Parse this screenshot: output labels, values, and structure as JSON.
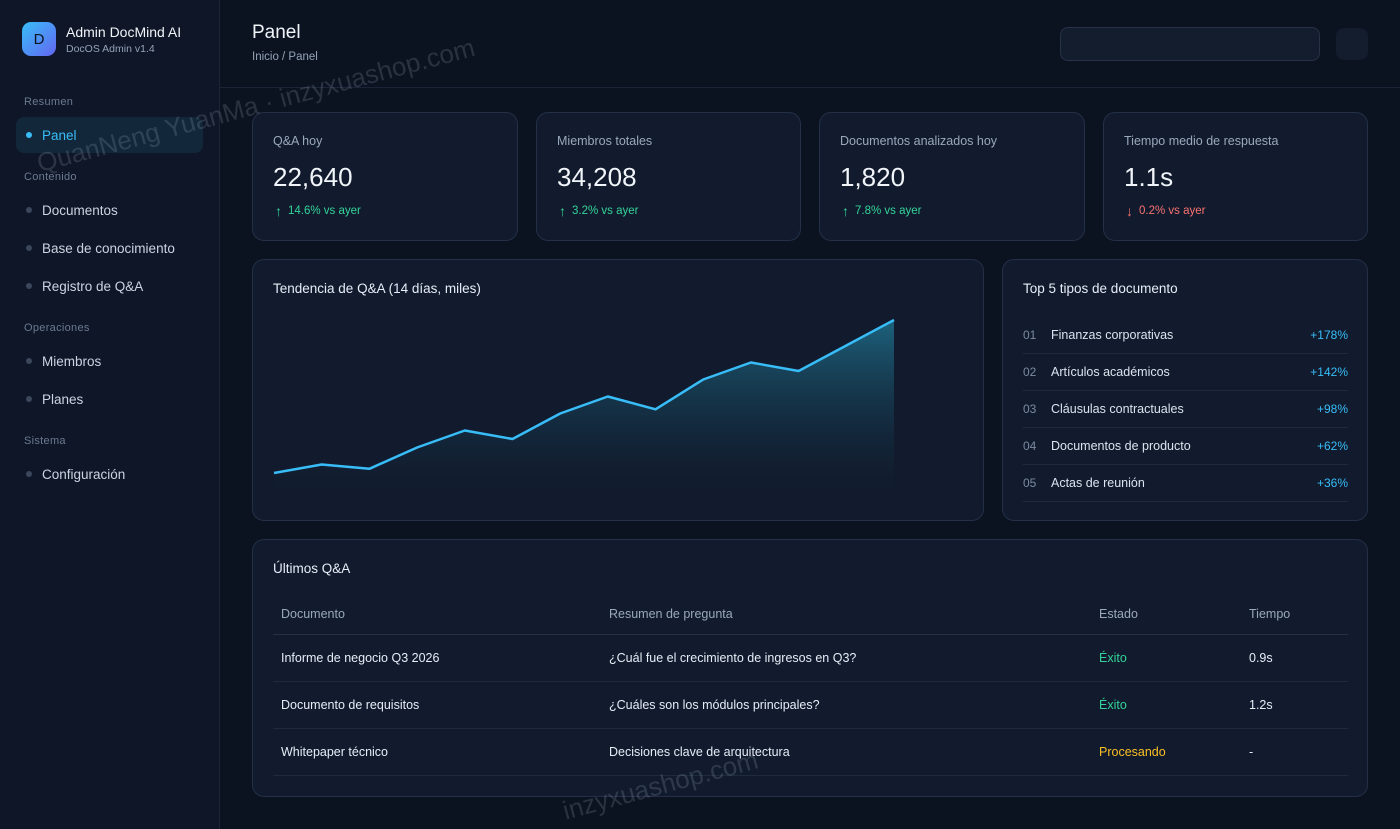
{
  "brand": {
    "logo_letter": "D",
    "name": "Admin DocMind AI",
    "version": "DocOS Admin v1.4"
  },
  "sidebar": {
    "sections": [
      {
        "label": "Resumen",
        "items": [
          {
            "label": "Panel",
            "active": true
          }
        ]
      },
      {
        "label": "Contenido",
        "items": [
          {
            "label": "Documentos"
          },
          {
            "label": "Base de conocimiento"
          },
          {
            "label": "Registro de Q&A"
          }
        ]
      },
      {
        "label": "Operaciones",
        "items": [
          {
            "label": "Miembros"
          },
          {
            "label": "Planes"
          }
        ]
      },
      {
        "label": "Sistema",
        "items": [
          {
            "label": "Configuración"
          }
        ]
      }
    ]
  },
  "header": {
    "title": "Panel",
    "breadcrumb": "Inicio / Panel",
    "search_value": ""
  },
  "stats": [
    {
      "label": "Q&A hoy",
      "value": "22,640",
      "delta": "14.6% vs ayer",
      "direction": "up"
    },
    {
      "label": "Miembros totales",
      "value": "34,208",
      "delta": "3.2% vs ayer",
      "direction": "up"
    },
    {
      "label": "Documentos analizados hoy",
      "value": "1,820",
      "delta": "7.8% vs ayer",
      "direction": "up"
    },
    {
      "label": "Tiempo medio de respuesta",
      "value": "1.1s",
      "delta": "0.2% vs ayer",
      "direction": "down"
    }
  ],
  "trend": {
    "title": "Tendencia de Q&A (14 días, miles)"
  },
  "chart_data": {
    "type": "area",
    "title": "Tendencia de Q&A (14 días, miles)",
    "x": [
      1,
      2,
      3,
      4,
      5,
      6,
      7,
      8,
      9,
      10,
      11,
      12,
      13,
      14
    ],
    "values": [
      2.0,
      3.0,
      2.5,
      5.0,
      7.0,
      6.0,
      9.0,
      11.0,
      9.5,
      13.0,
      15.0,
      14.0,
      17.0,
      20.0
    ],
    "ylim": [
      0,
      20
    ],
    "grid": false,
    "color": "#38bdf8"
  },
  "top5": {
    "title": "Top 5 tipos de documento",
    "items": [
      {
        "rank": "01",
        "name": "Finanzas corporativas",
        "pct": "+178%"
      },
      {
        "rank": "02",
        "name": "Artículos académicos",
        "pct": "+142%"
      },
      {
        "rank": "03",
        "name": "Cláusulas contractuales",
        "pct": "+98%"
      },
      {
        "rank": "04",
        "name": "Documentos de producto",
        "pct": "+62%"
      },
      {
        "rank": "05",
        "name": "Actas de reunión",
        "pct": "+36%"
      }
    ]
  },
  "latest": {
    "title": "Últimos Q&A",
    "columns": [
      "Documento",
      "Resumen de pregunta",
      "Estado",
      "Tiempo"
    ],
    "rows": [
      {
        "document": "Informe de negocio Q3 2026",
        "question": "¿Cuál fue el crecimiento de ingresos en Q3?",
        "status": "Éxito",
        "status_type": "ok",
        "time": "0.9s"
      },
      {
        "document": "Documento de requisitos",
        "question": "¿Cuáles son los módulos principales?",
        "status": "Éxito",
        "status_type": "ok",
        "time": "1.2s"
      },
      {
        "document": "Whitepaper técnico",
        "question": "Decisiones clave de arquitectura",
        "status": "Procesando",
        "status_type": "proc",
        "time": "-"
      }
    ]
  },
  "watermark": {
    "line1": "QuanNeng YuanMa · inzyxuashop.com",
    "line2": "inzyxuashop.com"
  },
  "colors": {
    "accent": "#38bdf8",
    "success": "#34d399",
    "danger": "#f87171",
    "warning": "#fbbf24"
  }
}
